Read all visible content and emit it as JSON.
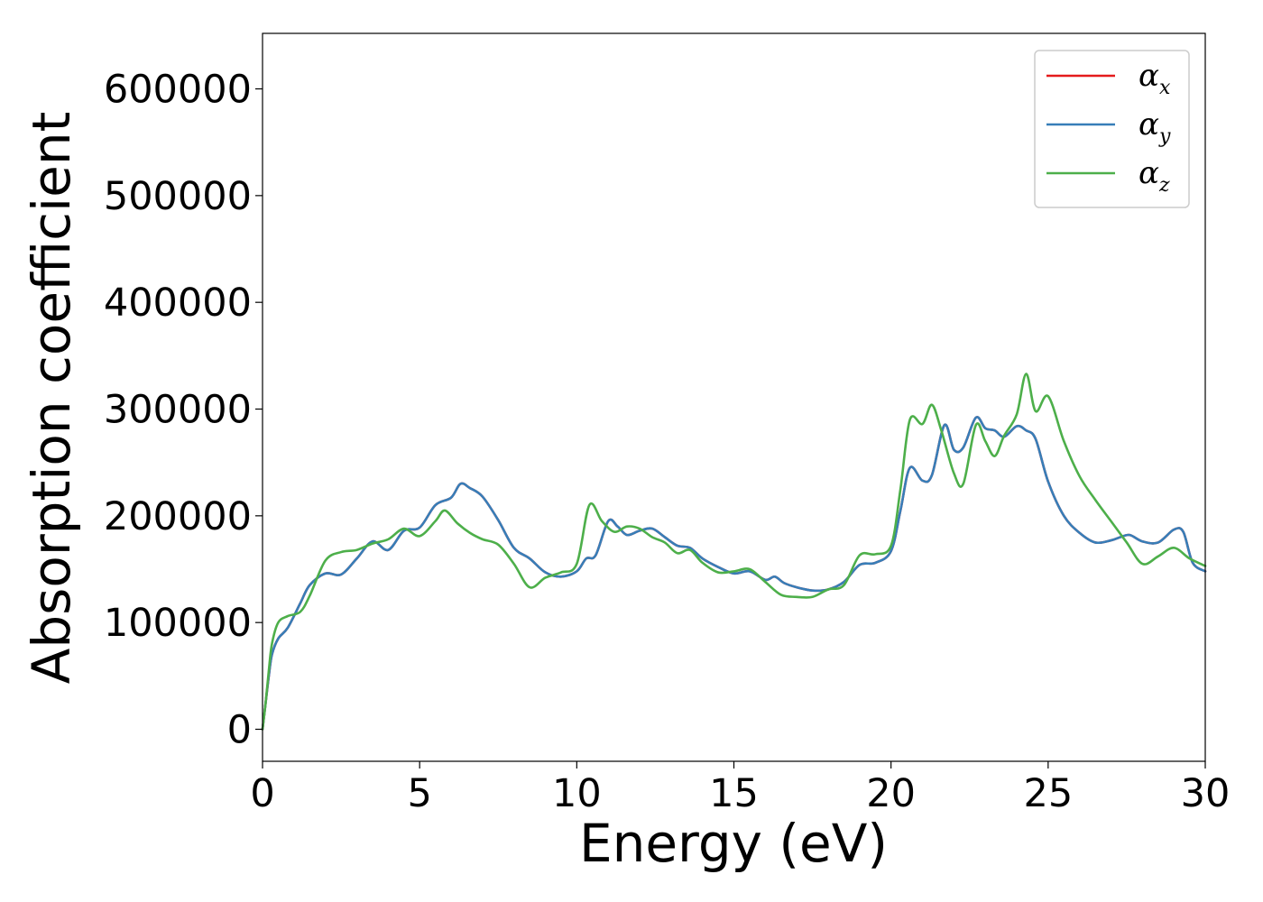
{
  "chart_data": {
    "type": "line",
    "xlabel": "Energy (eV)",
    "ylabel": "Absorption coefficient",
    "xlim": [
      0,
      30
    ],
    "ylim": [
      -30000,
      652000
    ],
    "xticks": [
      0,
      5,
      10,
      15,
      20,
      25,
      30
    ],
    "xtick_labels": [
      "0",
      "5",
      "10",
      "15",
      "20",
      "25",
      "30"
    ],
    "yticks": [
      0,
      100000,
      200000,
      300000,
      400000,
      500000,
      600000
    ],
    "ytick_labels": [
      "0",
      "100000",
      "200000",
      "300000",
      "400000",
      "500000",
      "600000"
    ],
    "grid": false,
    "legend_position": "top-right",
    "series": [
      {
        "name": "α_x",
        "legend_main": "α",
        "legend_sub": "x",
        "color": "#e41a1c",
        "x": [
          0,
          0.1,
          0.2,
          0.3,
          0.5,
          0.8,
          1.2,
          1.5,
          2.0,
          2.5,
          3.0,
          3.5,
          4.0,
          4.5,
          5.0,
          5.5,
          6.0,
          6.3,
          6.6,
          7.0,
          7.5,
          8.0,
          8.5,
          9.0,
          9.5,
          10.0,
          10.3,
          10.6,
          11.0,
          11.3,
          11.6,
          12.0,
          12.4,
          12.8,
          13.2,
          13.6,
          14.0,
          14.5,
          15.0,
          15.5,
          16.0,
          16.3,
          16.6,
          17.0,
          17.5,
          18.0,
          18.5,
          19.0,
          19.5,
          20.0,
          20.3,
          20.6,
          21.0,
          21.3,
          21.7,
          22.0,
          22.3,
          22.7,
          23.0,
          23.3,
          23.6,
          24.0,
          24.3,
          24.6,
          25.0,
          25.5,
          26.0,
          26.5,
          27.0,
          27.3,
          27.6,
          28.0,
          28.5,
          29.0,
          29.3,
          29.6,
          30.0
        ],
        "y": [
          0,
          25000,
          50000,
          70000,
          85000,
          95000,
          118000,
          135000,
          146000,
          145000,
          160000,
          176000,
          168000,
          186000,
          189000,
          210000,
          217000,
          230000,
          226000,
          218000,
          196000,
          170000,
          160000,
          147000,
          143000,
          148000,
          160000,
          163000,
          195000,
          190000,
          182000,
          186000,
          188000,
          180000,
          172000,
          170000,
          160000,
          152000,
          146000,
          148000,
          140000,
          143000,
          137000,
          133000,
          130000,
          131000,
          138000,
          154000,
          156000,
          167000,
          205000,
          245000,
          233000,
          238000,
          285000,
          262000,
          264000,
          292000,
          282000,
          280000,
          274000,
          284000,
          280000,
          272000,
          232000,
          200000,
          184000,
          175000,
          177000,
          180000,
          182000,
          176000,
          175000,
          187000,
          185000,
          156000,
          148000
        ]
      },
      {
        "name": "α_y",
        "legend_main": "α",
        "legend_sub": "y",
        "color": "#377eb8",
        "x": [
          0,
          0.1,
          0.2,
          0.3,
          0.5,
          0.8,
          1.2,
          1.5,
          2.0,
          2.5,
          3.0,
          3.5,
          4.0,
          4.5,
          5.0,
          5.5,
          6.0,
          6.3,
          6.6,
          7.0,
          7.5,
          8.0,
          8.5,
          9.0,
          9.5,
          10.0,
          10.3,
          10.6,
          11.0,
          11.3,
          11.6,
          12.0,
          12.4,
          12.8,
          13.2,
          13.6,
          14.0,
          14.5,
          15.0,
          15.5,
          16.0,
          16.3,
          16.6,
          17.0,
          17.5,
          18.0,
          18.5,
          19.0,
          19.5,
          20.0,
          20.3,
          20.6,
          21.0,
          21.3,
          21.7,
          22.0,
          22.3,
          22.7,
          23.0,
          23.3,
          23.6,
          24.0,
          24.3,
          24.6,
          25.0,
          25.5,
          26.0,
          26.5,
          27.0,
          27.3,
          27.6,
          28.0,
          28.5,
          29.0,
          29.3,
          29.6,
          30.0
        ],
        "y": [
          0,
          25000,
          50000,
          70000,
          85000,
          95000,
          118000,
          135000,
          146000,
          145000,
          160000,
          176000,
          168000,
          186000,
          189000,
          210000,
          217000,
          230000,
          226000,
          218000,
          196000,
          170000,
          160000,
          147000,
          143000,
          148000,
          160000,
          163000,
          195000,
          190000,
          182000,
          186000,
          188000,
          180000,
          172000,
          170000,
          160000,
          152000,
          146000,
          148000,
          140000,
          143000,
          137000,
          133000,
          130000,
          131000,
          138000,
          154000,
          156000,
          167000,
          205000,
          245000,
          233000,
          238000,
          285000,
          262000,
          264000,
          292000,
          282000,
          280000,
          274000,
          284000,
          280000,
          272000,
          232000,
          200000,
          184000,
          175000,
          177000,
          180000,
          182000,
          176000,
          175000,
          187000,
          185000,
          156000,
          148000
        ]
      },
      {
        "name": "α_z",
        "legend_main": "α",
        "legend_sub": "z",
        "color": "#4daf4a",
        "x": [
          0,
          0.1,
          0.2,
          0.3,
          0.5,
          0.8,
          1.2,
          1.5,
          2.0,
          2.5,
          3.0,
          3.5,
          4.0,
          4.5,
          5.0,
          5.5,
          5.8,
          6.2,
          6.6,
          7.0,
          7.5,
          8.0,
          8.5,
          9.0,
          9.5,
          10.0,
          10.4,
          10.8,
          11.2,
          11.6,
          12.0,
          12.4,
          12.8,
          13.2,
          13.6,
          14.0,
          14.5,
          15.0,
          15.5,
          16.0,
          16.5,
          17.0,
          17.5,
          18.0,
          18.5,
          19.0,
          19.5,
          20.0,
          20.3,
          20.6,
          21.0,
          21.3,
          21.6,
          22.0,
          22.3,
          22.7,
          23.0,
          23.3,
          23.6,
          24.0,
          24.3,
          24.6,
          25.0,
          25.5,
          26.0,
          26.5,
          27.0,
          27.5,
          28.0,
          28.5,
          29.0,
          29.5,
          30.0
        ],
        "y": [
          0,
          25000,
          55000,
          80000,
          100000,
          106000,
          110000,
          125000,
          158000,
          166000,
          168000,
          174000,
          178000,
          188000,
          181000,
          195000,
          205000,
          193000,
          184000,
          178000,
          173000,
          155000,
          133000,
          142000,
          147000,
          155000,
          210000,
          195000,
          185000,
          190000,
          188000,
          180000,
          175000,
          165000,
          168000,
          156000,
          147000,
          148000,
          150000,
          138000,
          126000,
          124000,
          124000,
          131000,
          135000,
          163000,
          164000,
          172000,
          225000,
          290000,
          286000,
          304000,
          280000,
          240000,
          230000,
          285000,
          270000,
          256000,
          275000,
          295000,
          333000,
          298000,
          312000,
          270000,
          237000,
          215000,
          195000,
          175000,
          155000,
          162000,
          170000,
          160000,
          153000
        ]
      }
    ]
  }
}
